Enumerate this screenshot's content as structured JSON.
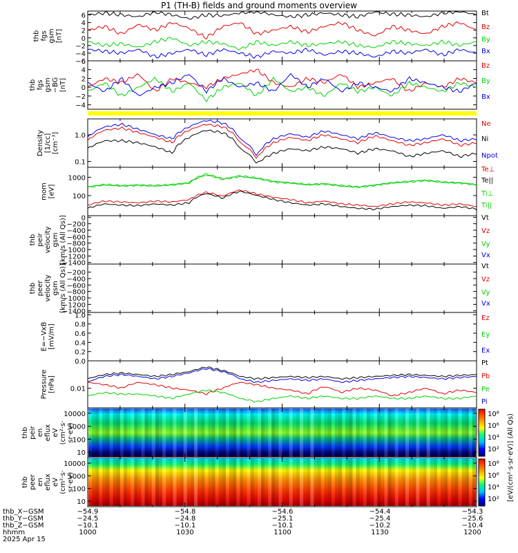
{
  "title": "P1 (TH-B) fields and ground moments overview",
  "colors": {
    "black": "#000000",
    "red": "#e00000",
    "green": "#00d000",
    "blue": "#0000e0",
    "yellow": "#ffff00"
  },
  "chart_data": [
    {
      "type": "line",
      "panel": "fgs_gsm",
      "ylabel": [
        "thb",
        "fgs",
        "gsm",
        "[nT]"
      ],
      "yticks": [
        "6",
        "4",
        "2",
        "0",
        "−2",
        "−4",
        "−6"
      ],
      "ylim": [
        -6,
        7
      ],
      "series": [
        {
          "name": "Bt",
          "color": "black",
          "values": [
            6,
            6.5,
            6,
            5.5,
            6.8,
            6,
            5,
            6,
            5.8,
            6.5,
            7,
            6,
            5.5,
            6,
            6.5,
            6,
            5.5,
            6.8,
            6.2,
            6,
            5.5,
            6.5,
            7,
            6
          ]
        },
        {
          "name": "Bz",
          "color": "red",
          "values": [
            2,
            3,
            1,
            3.5,
            2,
            4,
            2.5,
            0,
            3,
            4,
            1,
            2,
            3,
            1.5,
            3,
            4,
            2,
            0.5,
            3,
            2,
            1,
            3,
            4,
            2
          ]
        },
        {
          "name": "By",
          "color": "green",
          "values": [
            -1,
            -2,
            -1.5,
            -2.5,
            -1,
            0,
            -2,
            -1,
            -1.5,
            -3,
            -1,
            -2,
            -1,
            -2,
            -1.5,
            -1,
            -2,
            -2.5,
            -1,
            -1.5,
            -2,
            -1,
            -2,
            -1
          ]
        },
        {
          "name": "Bx",
          "color": "blue",
          "values": [
            -3,
            -3.5,
            -4,
            -3,
            -5,
            -4,
            -3,
            -4.5,
            -3,
            -4,
            -5,
            -3.5,
            -4,
            -3,
            -4.5,
            -3.5,
            -4,
            -5,
            -3.5,
            -4,
            -3,
            -4.5,
            -3,
            -4
          ]
        }
      ]
    },
    {
      "type": "line",
      "panel": "fgs_gsm_2",
      "ylabel": [
        "thb",
        "fgs",
        "gsm",
        "−BG",
        "[nT]"
      ],
      "yticks": [
        "6",
        "4",
        "2",
        "0",
        "−2",
        "−4"
      ],
      "ylim": [
        -5,
        6
      ],
      "series": [
        {
          "name": "Bz",
          "color": "red",
          "values": [
            0,
            2,
            1,
            3,
            -1,
            2,
            1,
            0,
            2,
            3,
            4,
            1,
            0,
            2,
            1,
            3,
            0,
            1,
            2,
            -1,
            1,
            0,
            2,
            1
          ]
        },
        {
          "name": "By",
          "color": "green",
          "values": [
            -1,
            1,
            -2,
            0,
            2,
            -1,
            1,
            -3,
            0,
            1,
            -2,
            2,
            -1,
            0,
            -2,
            1,
            -1,
            0,
            -2,
            1,
            0,
            -1,
            1,
            0
          ]
        },
        {
          "name": "Bx",
          "color": "blue",
          "values": [
            1,
            -1,
            2,
            -2,
            0,
            1,
            3,
            -1,
            2,
            0,
            1,
            -1,
            3,
            0,
            2,
            -1,
            1,
            0,
            -1,
            2,
            1,
            0,
            -1,
            1
          ]
        }
      ]
    },
    {
      "type": "line",
      "panel": "density",
      "scale": "log",
      "ylabel": [
        "Density",
        "[1/cc]",
        "[cm⁻³]"
      ],
      "yticks": [
        "1.0",
        "0.1"
      ],
      "ylim": [
        0.06,
        4
      ],
      "series": [
        {
          "name": "Ne",
          "color": "red",
          "values": [
            0.6,
            1.5,
            1.8,
            1.2,
            0.8,
            0.5,
            1.5,
            2.5,
            2.0,
            0.5,
            0.12,
            0.5,
            0.8,
            0.6,
            1.0,
            0.7,
            0.5,
            0.9,
            0.6,
            0.4,
            0.5,
            0.7,
            0.4,
            0.5
          ]
        },
        {
          "name": "Ni",
          "color": "black",
          "values": [
            0.3,
            0.6,
            0.6,
            0.5,
            0.35,
            0.2,
            0.8,
            1.5,
            1.2,
            0.3,
            0.08,
            0.2,
            0.3,
            0.25,
            0.35,
            0.3,
            0.2,
            0.3,
            0.25,
            0.15,
            0.2,
            0.25,
            0.15,
            0.2
          ]
        },
        {
          "name": "Npot",
          "color": "blue",
          "values": [
            0.8,
            2.0,
            2.5,
            1.6,
            1.0,
            0.7,
            2.0,
            3.5,
            2.8,
            0.7,
            0.15,
            0.7,
            1.1,
            0.8,
            1.4,
            1.0,
            0.7,
            1.2,
            0.8,
            0.6,
            0.7,
            1.0,
            0.6,
            0.7
          ]
        }
      ]
    },
    {
      "type": "line",
      "panel": "temperature",
      "scale": "log",
      "ylabel": [
        "mom",
        "[eV]"
      ],
      "yticks": [
        "1000",
        "100"
      ],
      "ylim": [
        8,
        3500
      ],
      "series": [
        {
          "name": "Te⊥",
          "color": "red",
          "values": [
            30,
            50,
            45,
            40,
            50,
            45,
            60,
            150,
            90,
            200,
            120,
            80,
            60,
            40,
            50,
            35,
            30,
            25,
            35,
            45,
            40,
            30,
            35,
            25
          ]
        },
        {
          "name": "Te||",
          "color": "black",
          "values": [
            20,
            35,
            30,
            28,
            35,
            30,
            40,
            130,
            70,
            170,
            100,
            60,
            40,
            30,
            35,
            25,
            20,
            18,
            25,
            30,
            28,
            20,
            25,
            18
          ]
        },
        {
          "name": "Ti⊥",
          "color": "green",
          "values": [
            300,
            400,
            350,
            380,
            350,
            400,
            500,
            1500,
            800,
            1200,
            900,
            600,
            500,
            400,
            450,
            350,
            300,
            380,
            500,
            600,
            700,
            550,
            500,
            400
          ]
        },
        {
          "name": "Ti||",
          "color": "green",
          "values": [
            280,
            380,
            330,
            360,
            330,
            380,
            480,
            1300,
            750,
            1100,
            850,
            550,
            480,
            380,
            420,
            330,
            280,
            360,
            480,
            550,
            650,
            520,
            480,
            380
          ]
        }
      ]
    },
    {
      "type": "line",
      "panel": "peir_velocity",
      "ylabel": [
        "thb",
        "peir",
        "velocity",
        "gsm",
        "[km/s (All Qs)]"
      ],
      "yticks": [
        "0",
        "−200",
        "−400",
        "−600",
        "−800",
        "−1000",
        "−1200",
        "−1400"
      ],
      "ylim": [
        -1450,
        50
      ],
      "legend": [
        "Vt",
        "Vz",
        "Vy",
        "Vx"
      ],
      "series": []
    },
    {
      "type": "line",
      "panel": "peer_velocity",
      "ylabel": [
        "thb",
        "peer",
        "velocity",
        "gsm",
        "[km/s (All Qs)]"
      ],
      "yticks": [
        "−200",
        "−400",
        "−600",
        "−800",
        "−1000",
        "−1200",
        "−1400"
      ],
      "ylim": [
        -1450,
        50
      ],
      "legend": [
        "Vt",
        "Vz",
        "Vy",
        "Vx"
      ],
      "series": []
    },
    {
      "type": "line",
      "panel": "efield",
      "ylabel": [
        "E=−VxB",
        "[mV/m]"
      ],
      "yticks": [
        "1.0",
        "0.8",
        "0.6",
        "0.4",
        "0.2",
        "0.0"
      ],
      "ylim": [
        0,
        1.05
      ],
      "legend": [
        "Ez",
        "Ey",
        "Ex"
      ],
      "series": []
    },
    {
      "type": "line",
      "panel": "pressure",
      "scale": "log",
      "ylabel": [
        "Pressure",
        "[nPa]"
      ],
      "yticks": [
        "0.01"
      ],
      "ylim": [
        0.001,
        0.25
      ],
      "series": [
        {
          "name": "Pt",
          "color": "black",
          "values": [
            0.03,
            0.05,
            0.06,
            0.05,
            0.04,
            0.05,
            0.07,
            0.12,
            0.08,
            0.04,
            0.03,
            0.035,
            0.04,
            0.035,
            0.04,
            0.03,
            0.035,
            0.04,
            0.045,
            0.05,
            0.045,
            0.04,
            0.045,
            0.05
          ]
        },
        {
          "name": "Pb",
          "color": "red",
          "values": [
            0.02,
            0.015,
            0.01,
            0.02,
            0.015,
            0.01,
            0.008,
            0.005,
            0.01,
            0.02,
            0.015,
            0.01,
            0.008,
            0.005,
            0.012,
            0.006,
            0.01,
            0.008,
            0.004,
            0.006,
            0.01,
            0.005,
            0.008,
            0.006
          ]
        },
        {
          "name": "Pe",
          "color": "green",
          "values": [
            0.004,
            0.006,
            0.005,
            0.005,
            0.004,
            0.003,
            0.005,
            0.008,
            0.006,
            0.003,
            0.002,
            0.003,
            0.004,
            0.003,
            0.004,
            0.003,
            0.003,
            0.004,
            0.003,
            0.003,
            0.004,
            0.003,
            0.003,
            0.004
          ]
        },
        {
          "name": "Pi",
          "color": "blue",
          "values": [
            0.02,
            0.04,
            0.05,
            0.04,
            0.03,
            0.04,
            0.06,
            0.1,
            0.07,
            0.03,
            0.02,
            0.025,
            0.03,
            0.025,
            0.03,
            0.02,
            0.025,
            0.03,
            0.035,
            0.04,
            0.035,
            0.03,
            0.035,
            0.04
          ]
        }
      ]
    },
    {
      "type": "heatmap",
      "panel": "peir_spectrogram",
      "scale": "log",
      "ylabel": [
        "thb",
        "peir",
        "en",
        "eflux",
        "eV",
        "(cm²·s·",
        "sr·eV)"
      ],
      "yticks": [
        "10000",
        "1000",
        "100",
        "10"
      ]
    },
    {
      "type": "heatmap",
      "panel": "peer_spectrogram",
      "scale": "log",
      "ylabel": [
        "thb",
        "peer",
        "en",
        "eflux",
        "eV",
        "(cm²·s·",
        "sr·eV)"
      ],
      "yticks": [
        "10000",
        "1000",
        "100",
        "10"
      ]
    }
  ],
  "colorbar": {
    "label": "[eV/(cm²·s·sr·eV)] (All Qs)",
    "top_ticks": [
      "10⁸",
      "10⁶",
      "10⁴",
      "10²"
    ],
    "bottom_ticks": [
      "10⁸",
      "10⁶",
      "10⁴",
      "10²"
    ]
  },
  "time_axis": {
    "rows": [
      {
        "label": "thb_X−GSM",
        "values": [
          "−54.9",
          "−54.8",
          "−54.6",
          "−54.4",
          "−54.3"
        ]
      },
      {
        "label": "thb_Y−GSM",
        "values": [
          "−24.5",
          "−24.8",
          "−25.1",
          "−25.4",
          "−25.6"
        ]
      },
      {
        "label": "thb_Z−GSM",
        "values": [
          "−10.1",
          "−10.1",
          "−10.1",
          "−10.2",
          "−10.4"
        ]
      },
      {
        "label": "hhmm",
        "values": [
          "1000",
          "1030",
          "1100",
          "1130",
          "1200"
        ]
      }
    ],
    "date": "2025 Apr 15"
  }
}
